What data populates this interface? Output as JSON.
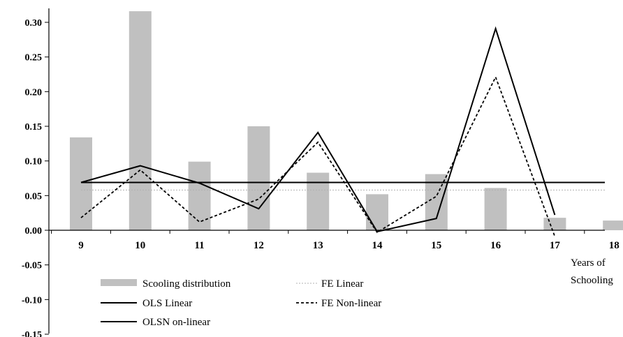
{
  "chart_data": {
    "type": "bar",
    "categories": [
      "9",
      "10",
      "11",
      "12",
      "13",
      "14",
      "15",
      "16",
      "17",
      "18"
    ],
    "xlabel": "Years of Schooling",
    "xlabel_lines": [
      "Years of",
      "Schooling"
    ],
    "ylim": [
      -0.15,
      0.32
    ],
    "yticks": [
      0.3,
      0.25,
      0.2,
      0.15,
      0.1,
      0.05,
      0.0,
      -0.05,
      -0.1,
      -0.15
    ],
    "ytick_labels": [
      "0.30",
      "0.25",
      "0.20",
      "0.15",
      "0.10",
      "0.05",
      "0.00",
      "-0.05",
      "-0.10",
      "-0.15"
    ],
    "grid": false,
    "legend_position": "bottom",
    "series": [
      {
        "name": "Scooling distribution",
        "kind": "bar",
        "color": "#c0c0c0",
        "values": [
          0.134,
          0.316,
          0.099,
          0.15,
          0.083,
          0.052,
          0.081,
          0.061,
          0.018,
          0.014
        ]
      },
      {
        "name": "FE Linear",
        "kind": "line",
        "style": "dotted",
        "color": "#b0b0b0",
        "values": [
          0.058,
          0.058,
          0.058,
          0.058,
          0.058,
          0.058,
          0.058,
          0.058,
          0.058,
          0.058
        ]
      },
      {
        "name": "OLS Linear",
        "kind": "line",
        "style": "solid",
        "color": "#000000",
        "values": [
          0.069,
          0.069,
          0.069,
          0.069,
          0.069,
          0.069,
          0.069,
          0.069,
          0.069,
          0.069
        ]
      },
      {
        "name": "FE Non-linear",
        "kind": "line",
        "style": "dashed",
        "color": "#000000",
        "values": [
          0.018,
          0.087,
          0.012,
          0.045,
          0.127,
          -0.003,
          0.049,
          0.221,
          -0.009,
          null
        ]
      },
      {
        "name": "OLSN on-linear",
        "kind": "line",
        "style": "solid",
        "color": "#000000",
        "values": [
          0.069,
          0.093,
          0.068,
          0.031,
          0.141,
          -0.002,
          0.017,
          0.291,
          0.022,
          null
        ]
      }
    ]
  }
}
